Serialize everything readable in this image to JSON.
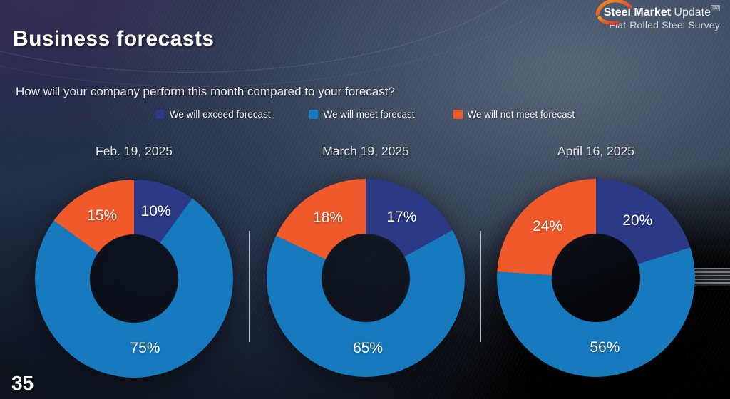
{
  "slide": {
    "title": "Business forecasts",
    "question": "How will your company perform this month compared to your forecast?",
    "page_number": "35"
  },
  "logo": {
    "brand_bold": "Steel Market",
    "brand_light": "Update",
    "trademark": "SM",
    "subtitle": "Flat-Rolled Steel Survey"
  },
  "legend": [
    {
      "label": "We will exceed forecast",
      "color": "#2a3a85"
    },
    {
      "label": "We will meet forecast",
      "color": "#1779be"
    },
    {
      "label": "We will not meet forecast",
      "color": "#f05a2b"
    }
  ],
  "chart_data": {
    "type": "pie",
    "subtype": "donut",
    "title": "How will your company perform this month compared to your forecast?",
    "legend_position": "top",
    "slice_order_clockwise_from_top": [
      "We will exceed forecast",
      "We will meet forecast",
      "We will not meet forecast"
    ],
    "colors": [
      "#2a3a85",
      "#1779be",
      "#f05a2b"
    ],
    "charts": [
      {
        "date": "Feb. 19, 2025",
        "values": [
          10,
          75,
          15
        ],
        "labels": [
          "10%",
          "75%",
          "15%"
        ]
      },
      {
        "date": "March 19, 2025",
        "values": [
          17,
          65,
          18
        ],
        "labels": [
          "17%",
          "65%",
          "18%"
        ]
      },
      {
        "date": "April 16, 2025",
        "values": [
          20,
          56,
          24
        ],
        "labels": [
          "20%",
          "56%",
          "24%"
        ]
      }
    ]
  }
}
